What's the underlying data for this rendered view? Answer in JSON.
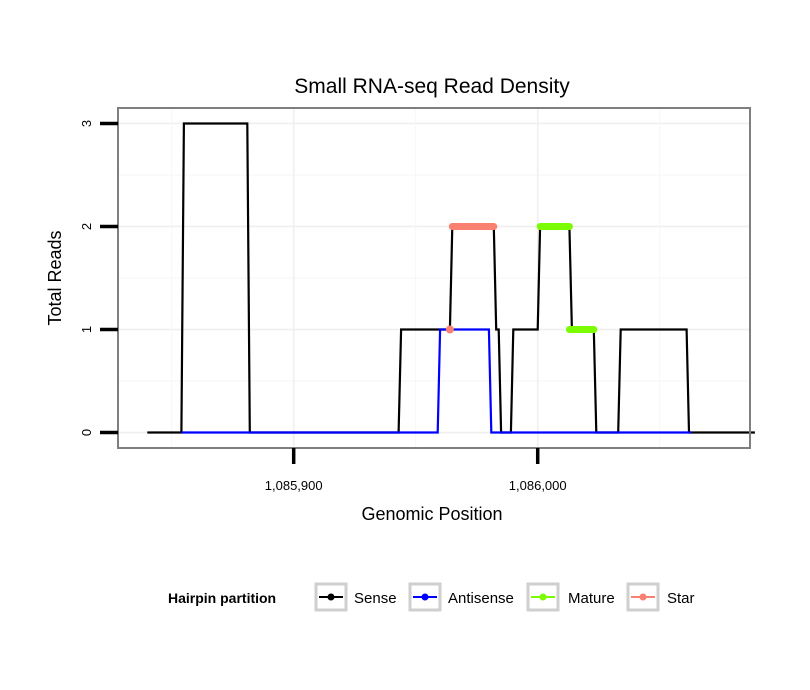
{
  "chart_data": {
    "type": "line",
    "title": "Small RNA-seq Read Density",
    "xlabel": "Genomic Position",
    "ylabel": "Total Reads",
    "xlim": [
      1085828,
      1086087
    ],
    "ylim": [
      -0.15,
      3.15
    ],
    "x_ticks": [
      {
        "value": 1085900,
        "label": "1,085,900"
      },
      {
        "value": 1086000,
        "label": "1,086,000"
      }
    ],
    "y_ticks": [
      {
        "value": 0,
        "label": "0"
      },
      {
        "value": 1,
        "label": "1"
      },
      {
        "value": 2,
        "label": "2"
      },
      {
        "value": 3,
        "label": "3"
      }
    ],
    "grid": true,
    "legend": {
      "title": "Hairpin partition",
      "position": "bottom",
      "entries": [
        "Sense",
        "Antisense",
        "Mature",
        "Star"
      ]
    },
    "series": [
      {
        "name": "Sense",
        "color": "#000000",
        "kind": "line",
        "x": [
          1085840,
          1085854,
          1085855,
          1085881,
          1085882,
          1085943,
          1085944,
          1085961,
          1085962,
          1085964,
          1085965,
          1085982,
          1085983,
          1085984,
          1085985,
          1085989,
          1085990,
          1086000,
          1086001,
          1086013,
          1086014,
          1086023,
          1086024,
          1086033,
          1086034,
          1086061,
          1086062,
          1086089
        ],
        "y": [
          0,
          0,
          3,
          3,
          0,
          0,
          1,
          1,
          1,
          1,
          2,
          2,
          1,
          1,
          0,
          0,
          1,
          1,
          2,
          2,
          1,
          1,
          0,
          0,
          1,
          1,
          0,
          0
        ]
      },
      {
        "name": "Antisense",
        "color": "#0000ff",
        "kind": "line",
        "x": [
          1085854,
          1085959,
          1085960,
          1085980,
          1085981,
          1085987,
          1086063
        ],
        "y": [
          0,
          0,
          1,
          1,
          0,
          0,
          0
        ]
      },
      {
        "name": "Mature",
        "color": "#7cfc00",
        "kind": "segments",
        "segments": [
          {
            "x": [
              1086001,
              1086013
            ],
            "y": 2
          },
          {
            "x": [
              1086013,
              1086023
            ],
            "y": 1
          }
        ]
      },
      {
        "name": "Star",
        "color": "#fa8072",
        "kind": "segments",
        "segments": [
          {
            "x": [
              1085965,
              1085982
            ],
            "y": 2
          }
        ],
        "points": [
          {
            "x": 1085964,
            "y": 1
          }
        ]
      }
    ]
  }
}
